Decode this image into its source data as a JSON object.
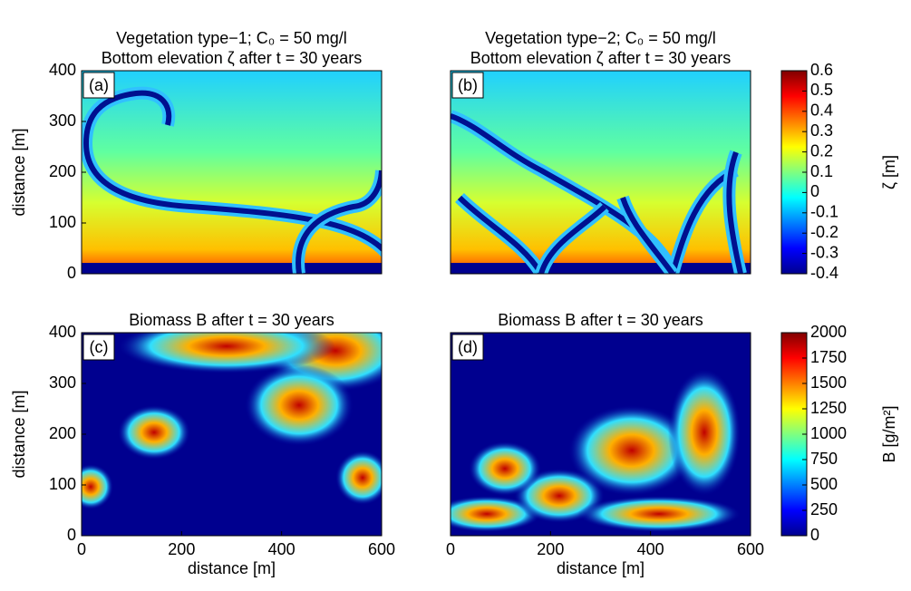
{
  "chart_data": [
    {
      "type": "heatmap",
      "title": [
        "Vegetation type−1; C₀ = 50 mg/l",
        "Bottom elevation ζ after t = 30 years"
      ],
      "panel_label": "(a)",
      "ylabel": "distance [m]",
      "xlim": [
        0,
        600
      ],
      "ylim": [
        0,
        400
      ],
      "yticks": [
        0,
        100,
        200,
        300,
        400
      ]
    },
    {
      "type": "heatmap",
      "title": [
        "Vegetation type−2; C₀ = 50 mg/l",
        "Bottom elevation ζ after t = 30 years"
      ],
      "panel_label": "(b)",
      "xlim": [
        0,
        600
      ],
      "ylim": [
        0,
        400
      ],
      "colorbar": {
        "label": "ζ [m]",
        "lim": [
          -0.4,
          0.6
        ],
        "ticks": [
          -0.4,
          -0.3,
          -0.2,
          -0.1,
          0,
          0.1,
          0.2,
          0.3,
          0.4,
          0.5,
          0.6
        ]
      }
    },
    {
      "type": "heatmap",
      "title": [
        "Biomass B after t = 30 years"
      ],
      "panel_label": "(c)",
      "ylabel": "distance [m]",
      "xlabel": "distance [m]",
      "xlim": [
        0,
        600
      ],
      "ylim": [
        0,
        400
      ],
      "xticks": [
        0,
        200,
        400,
        600
      ],
      "yticks": [
        0,
        100,
        200,
        300,
        400
      ]
    },
    {
      "type": "heatmap",
      "title": [
        "Biomass B after t = 30 years"
      ],
      "panel_label": "(d)",
      "xlabel": "distance [m]",
      "xlim": [
        0,
        600
      ],
      "ylim": [
        0,
        400
      ],
      "xticks": [
        0,
        200,
        400,
        600
      ],
      "colorbar": {
        "label": "B [g/m²]",
        "lim": [
          0,
          2000
        ],
        "ticks": [
          0,
          250,
          500,
          750,
          1000,
          1250,
          1500,
          1750,
          2000
        ]
      }
    }
  ]
}
